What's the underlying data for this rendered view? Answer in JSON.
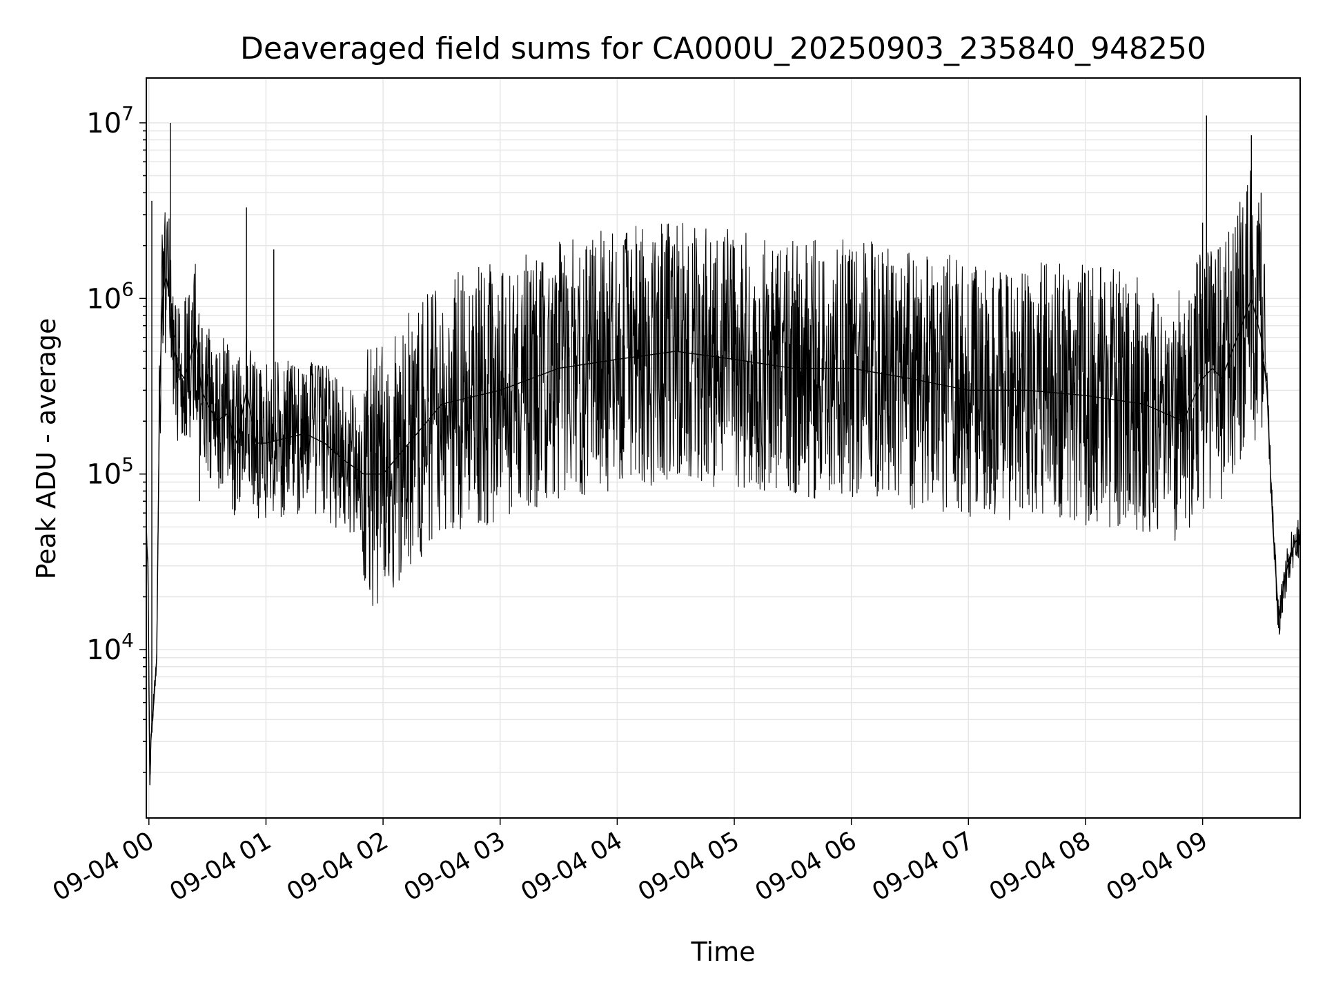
{
  "chart_data": {
    "type": "line",
    "title": "Deaveraged field sums for CA000U_20250903_235840_948250",
    "xlabel": "Time",
    "ylabel": "Peak ADU - average",
    "yscale": "log",
    "ylim": [
      1100,
      18000000
    ],
    "xlim": [
      "2025-09-03 23:58:40",
      "2025-09-04 09:50:00"
    ],
    "x_ticks": [
      "09-04 00",
      "09-04 01",
      "09-04 02",
      "09-04 03",
      "09-04 04",
      "09-04 05",
      "09-04 06",
      "09-04 07",
      "09-04 08",
      "09-04 09"
    ],
    "y_ticks": [
      {
        "base": "10",
        "exp": "4",
        "value": 10000
      },
      {
        "base": "10",
        "exp": "5",
        "value": 100000
      },
      {
        "base": "10",
        "exp": "6",
        "value": 1000000
      },
      {
        "base": "10",
        "exp": "7",
        "value": 10000000
      }
    ],
    "grid": true,
    "line_color": "#000000",
    "grid_color": "#e6e6e6",
    "series": [
      {
        "x": [
          "2025-09-03 23:58:40",
          "2025-09-03 23:59:30",
          "2025-09-04 00:00:30",
          "2025-09-04 00:01:00",
          "2025-09-04 00:02:30",
          "2025-09-04 00:04:00",
          "2025-09-04 00:05:30",
          "2025-09-04 00:07:00",
          "2025-09-04 00:08:00",
          "2025-09-04 00:09:00",
          "2025-09-04 00:10:00",
          "2025-09-04 00:11:30",
          "2025-09-04 00:13:00",
          "2025-09-04 00:15:00",
          "2025-09-04 00:18:00",
          "2025-09-04 00:21:00",
          "2025-09-04 00:24:00",
          "2025-09-04 00:27:00",
          "2025-09-04 00:30:00",
          "2025-09-04 00:35:00",
          "2025-09-04 00:40:00",
          "2025-09-04 00:45:00",
          "2025-09-04 00:50:00",
          "2025-09-04 00:55:00",
          "2025-09-04 01:00:00",
          "2025-09-04 01:10:00",
          "2025-09-04 01:20:00",
          "2025-09-04 01:30:00",
          "2025-09-04 01:40:00",
          "2025-09-04 01:50:00",
          "2025-09-04 02:00:00",
          "2025-09-04 02:30:00",
          "2025-09-04 03:00:00",
          "2025-09-04 03:30:00",
          "2025-09-04 04:00:00",
          "2025-09-04 04:30:00",
          "2025-09-04 05:00:00",
          "2025-09-04 05:30:00",
          "2025-09-04 06:00:00",
          "2025-09-04 06:30:00",
          "2025-09-04 07:00:00",
          "2025-09-04 07:30:00",
          "2025-09-04 08:00:00",
          "2025-09-04 08:30:00",
          "2025-09-04 08:50:00",
          "2025-09-04 09:00:00",
          "2025-09-04 09:05:00",
          "2025-09-04 09:10:00",
          "2025-09-04 09:15:00",
          "2025-09-04 09:20:00",
          "2025-09-04 09:25:00",
          "2025-09-04 09:30:00",
          "2025-09-04 09:33:00",
          "2025-09-04 09:36:00",
          "2025-09-04 09:39:00",
          "2025-09-04 09:42:00",
          "2025-09-04 09:45:00",
          "2025-09-04 09:47:00",
          "2025-09-04 09:50:00"
        ],
        "y": [
          45000,
          30000,
          1700,
          3000,
          5000,
          9000,
          300000,
          1000000,
          1200000,
          1300000,
          1100000,
          900000,
          500000,
          400000,
          350000,
          450000,
          600000,
          300000,
          250000,
          200000,
          220000,
          150000,
          300000,
          150000,
          150000,
          160000,
          170000,
          150000,
          120000,
          100000,
          100000,
          250000,
          300000,
          400000,
          450000,
          500000,
          450000,
          400000,
          400000,
          350000,
          300000,
          300000,
          280000,
          250000,
          200000,
          350000,
          400000,
          350000,
          500000,
          700000,
          1000000,
          600000,
          300000,
          50000,
          15000,
          25000,
          35000,
          40000,
          45000
        ]
      }
    ],
    "spikes": [
      {
        "x": "2025-09-04 00:01:30",
        "y": 3600000
      },
      {
        "x": "2025-09-04 00:11:00",
        "y": 10000000
      },
      {
        "x": "2025-09-04 00:26:00",
        "y": 70000
      },
      {
        "x": "2025-09-04 00:50:00",
        "y": 3300000
      },
      {
        "x": "2025-09-04 01:04:00",
        "y": 1900000
      },
      {
        "x": "2025-09-04 03:44:00",
        "y": 1900000
      },
      {
        "x": "2025-09-04 09:00:00",
        "y": 2700000
      },
      {
        "x": "2025-09-04 09:02:00",
        "y": 11000000
      },
      {
        "x": "2025-09-04 09:08:00",
        "y": 1900000
      },
      {
        "x": "2025-09-04 09:25:00",
        "y": 8500000
      },
      {
        "x": "2025-09-04 09:30:00",
        "y": 4000000
      }
    ]
  }
}
